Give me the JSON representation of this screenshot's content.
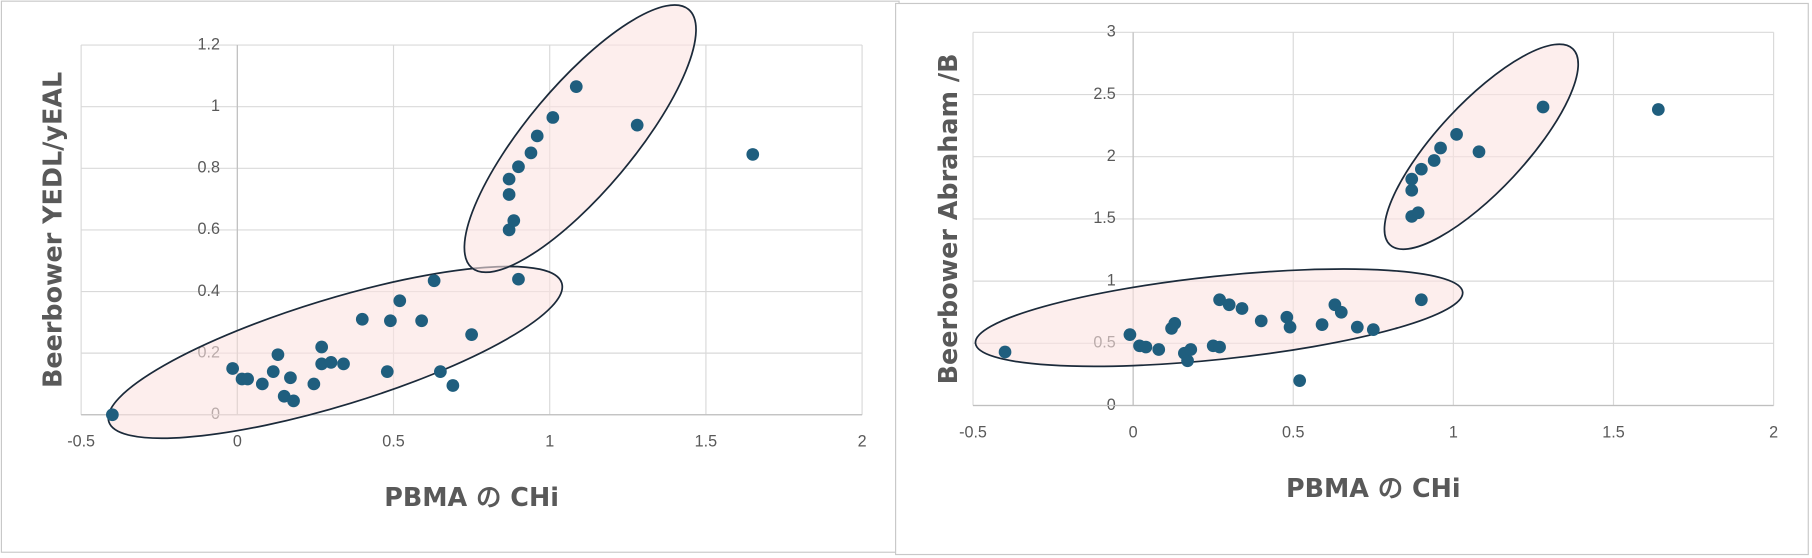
{
  "chart_data": [
    {
      "type": "scatter",
      "x_label": "PBMA の CHi",
      "y_label": "Beerbower YEDL/yEAL",
      "color": "#1f5e7e",
      "x": [
        -0.4,
        -0.015,
        0.015,
        0.033,
        0.08,
        0.115,
        0.13,
        0.15,
        0.17,
        0.18,
        0.245,
        0.27,
        0.27,
        0.3,
        0.34,
        0.4,
        0.48,
        0.49,
        0.52,
        0.59,
        0.63,
        0.65,
        0.69,
        0.75,
        0.9,
        0.87,
        0.885,
        0.87,
        0.87,
        0.9,
        0.94,
        0.96,
        1.01,
        1.085,
        1.28,
        1.65
      ],
      "values": [
        0,
        0.15,
        0.116,
        0.116,
        0.1,
        0.14,
        0.195,
        0.06,
        0.12,
        0.045,
        0.1,
        0.22,
        0.165,
        0.17,
        0.165,
        0.31,
        0.14,
        0.305,
        0.37,
        0.305,
        0.435,
        0.14,
        0.095,
        0.26,
        0.44,
        0.6,
        0.63,
        0.715,
        0.765,
        0.805,
        0.85,
        0.905,
        0.965,
        1.065,
        0.94,
        0.845
      ],
      "xlim": [
        -0.5,
        2
      ],
      "xticks": [
        -0.5,
        0,
        0.5,
        1,
        1.5,
        2
      ],
      "ylim": [
        0,
        1.2
      ],
      "yticks": [
        0,
        0.2,
        0.4,
        0.6,
        0.8,
        1,
        1.2
      ],
      "grid": true
    },
    {
      "type": "scatter",
      "x_label": "PBMA の CHi",
      "y_label": "Beerbower Abraham /B",
      "color": "#1f5e7e",
      "x": [
        -0.4,
        -0.01,
        0.02,
        0.04,
        0.08,
        0.12,
        0.13,
        0.16,
        0.17,
        0.18,
        0.25,
        0.27,
        0.27,
        0.3,
        0.34,
        0.4,
        0.48,
        0.49,
        0.52,
        0.59,
        0.63,
        0.65,
        0.7,
        0.75,
        0.9,
        0.87,
        0.89,
        0.87,
        0.87,
        0.9,
        0.94,
        0.96,
        1.01,
        1.08,
        1.28,
        1.64
      ],
      "values": [
        0.43,
        0.57,
        0.48,
        0.47,
        0.45,
        0.62,
        0.66,
        0.42,
        0.36,
        0.45,
        0.48,
        0.47,
        0.85,
        0.81,
        0.78,
        0.68,
        0.71,
        0.63,
        0.2,
        0.65,
        0.81,
        0.75,
        0.63,
        0.61,
        0.85,
        1.52,
        1.55,
        1.73,
        1.82,
        1.9,
        1.97,
        2.07,
        2.18,
        2.04,
        2.4,
        2.38
      ],
      "xlim": [
        -0.5,
        2
      ],
      "xticks": [
        -0.5,
        0,
        0.5,
        1,
        1.5,
        2
      ],
      "ylim": [
        0,
        3
      ],
      "yticks": [
        0,
        0.5,
        1,
        1.5,
        2,
        2.5,
        3
      ],
      "grid": true
    }
  ]
}
